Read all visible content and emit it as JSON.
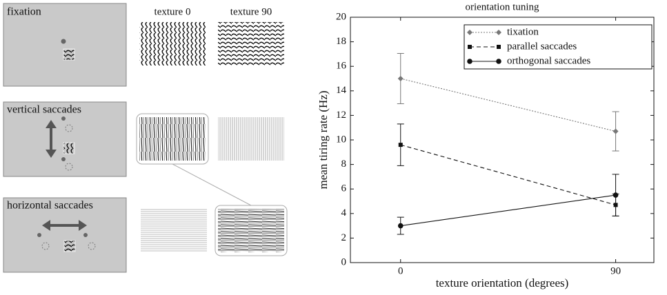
{
  "panels": [
    "fixation",
    "vertical saccades",
    "horizontal saccades"
  ],
  "texture_labels": [
    "texture 0",
    "texture 90"
  ],
  "chart_data": {
    "type": "line",
    "title": "orientation tuning",
    "x_label": "texture orientation (degrees)",
    "y_label": "mean tiring rate (Hz)",
    "x": [
      0,
      90
    ],
    "xlim": [
      -21,
      106
    ],
    "xticks": [
      0,
      90
    ],
    "ylim": [
      0,
      20
    ],
    "yticks": [
      0,
      2,
      4,
      6,
      8,
      10,
      12,
      14,
      16,
      18,
      20
    ],
    "legend": "upper right",
    "series": [
      {
        "name": "tixation",
        "color": "#777777",
        "dash": "2,2",
        "marker": "diamond",
        "values": [
          15.0,
          10.7
        ],
        "errors": [
          2.05,
          1.6
        ]
      },
      {
        "name": "parallel saccades",
        "color": "#111111",
        "dash": "6,4",
        "marker": "square",
        "values": [
          9.6,
          4.7
        ],
        "errors": [
          1.7,
          0.9
        ]
      },
      {
        "name": "orthogonal saccades",
        "color": "#111111",
        "dash": "none",
        "marker": "circle",
        "values": [
          3.0,
          5.5
        ],
        "errors": [
          0.7,
          1.7
        ]
      }
    ]
  }
}
